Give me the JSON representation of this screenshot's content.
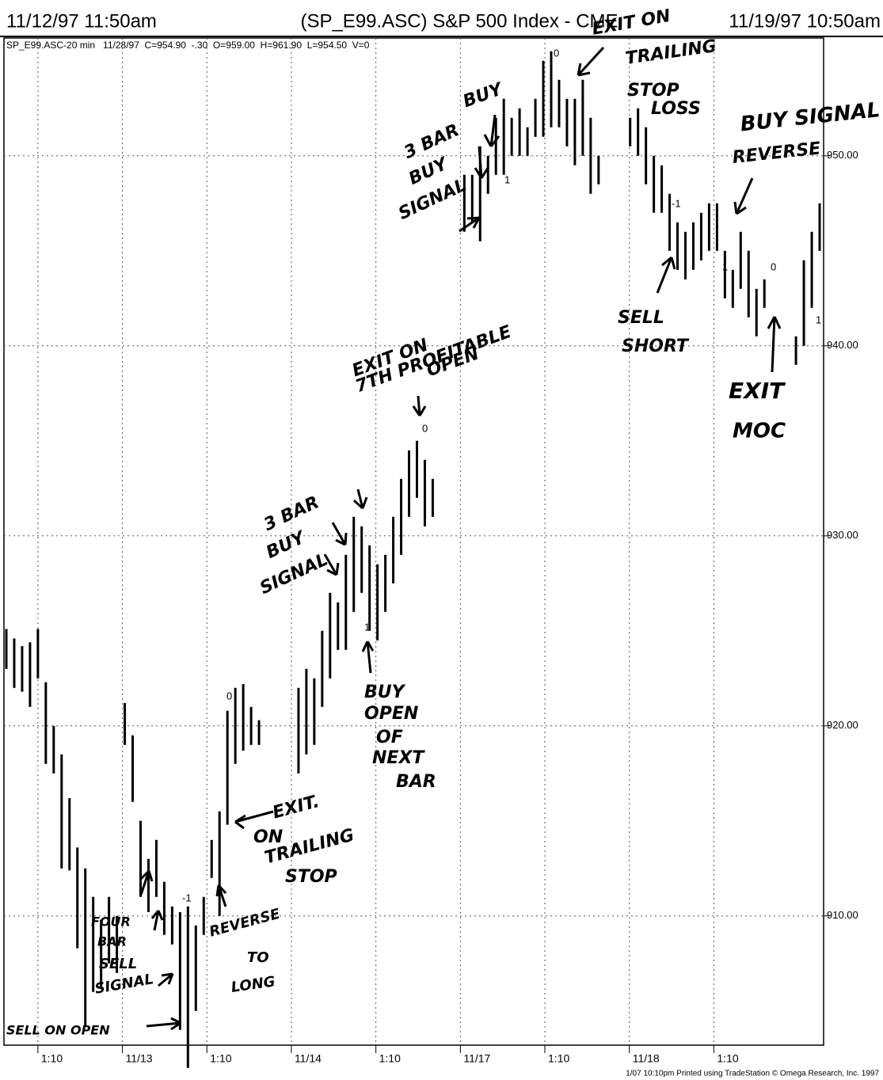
{
  "chart_data": {
    "type": "range-bar",
    "title_left": "11/12/97 11:50am",
    "title": "(SP_E99.ASC) S&P 500 Index - CME",
    "title_right": "11/19/97 10:50am",
    "subtitle": "SP_E99.ASC-20 min   11/28/97  C=954.90  -.30  O=959.00  H=961.90  L=954.50  V=0",
    "footer": "1/07 10:10pm Printed using TradeStation © Omega Research, Inc. 1997",
    "color": "#000000",
    "x": [
      0,
      1,
      2,
      3,
      4,
      5,
      6,
      7,
      8,
      9,
      10,
      11,
      12,
      13,
      14,
      15,
      16,
      17,
      18,
      19,
      20,
      21,
      22,
      23,
      24,
      25,
      26,
      27,
      28,
      29,
      30,
      31,
      32,
      37,
      38,
      39,
      40,
      41,
      42,
      43,
      44,
      45,
      46,
      47,
      48,
      49,
      50,
      51,
      52,
      53,
      54,
      58,
      59,
      60,
      61,
      62,
      63,
      64,
      65,
      66,
      67,
      68,
      69,
      70,
      71,
      72,
      73,
      74,
      75,
      79,
      80,
      81,
      82,
      83,
      84,
      85,
      86,
      87,
      88,
      89,
      90,
      91,
      92,
      93,
      94,
      95,
      96,
      100,
      101,
      102,
      103
    ],
    "high": [
      925.1,
      924.6,
      924.2,
      924.4,
      925.1,
      922.3,
      920.0,
      918.5,
      916.2,
      913.6,
      912.5,
      911.0,
      909.8,
      911.0,
      910.0,
      921.2,
      919.5,
      915.0,
      913.0,
      914.0,
      911.8,
      910.5,
      910.2,
      910.5,
      909.5,
      911.0,
      914.0,
      915.5,
      920.8,
      922.0,
      922.2,
      921.0,
      920.3,
      922.0,
      923.0,
      922.5,
      925.0,
      927.0,
      926.5,
      929.0,
      931.0,
      930.5,
      929.5,
      928.5,
      929.0,
      931.0,
      933.0,
      934.5,
      935.0,
      934.0,
      933.0,
      949.0,
      949.0,
      950.5,
      950.0,
      952.0,
      953.0,
      952.0,
      952.5,
      951.5,
      953.0,
      955.0,
      955.5,
      954.0,
      953.0,
      953.0,
      954.0,
      952.0,
      950.0,
      952.0,
      952.5,
      951.5,
      950.0,
      949.5,
      948.0,
      946.5,
      946.0,
      946.5,
      947.0,
      947.5,
      947.5,
      945.0,
      944.0,
      946.0,
      945.0,
      943.0,
      943.5,
      940.5,
      944.5,
      946.0,
      947.5
    ],
    "low": [
      923.0,
      922.0,
      921.8,
      921.0,
      922.5,
      918.0,
      917.5,
      912.5,
      912.4,
      908.3,
      904.2,
      906.0,
      906.3,
      907.5,
      907.0,
      919.0,
      916.0,
      911.0,
      910.2,
      911.0,
      909.0,
      908.5,
      904.0,
      902.0,
      905.0,
      909.0,
      912.0,
      910.0,
      914.8,
      918.0,
      918.7,
      919.0,
      919.0,
      917.5,
      918.5,
      919.0,
      921.0,
      922.5,
      924.0,
      924.0,
      926.0,
      927.0,
      925.0,
      924.5,
      926.0,
      927.5,
      929.0,
      931.0,
      932.0,
      930.5,
      931.0,
      946.0,
      946.5,
      945.5,
      948.0,
      949.0,
      949.0,
      950.0,
      950.0,
      950.0,
      951.0,
      951.0,
      951.5,
      951.5,
      950.5,
      949.5,
      950.0,
      948.0,
      948.5,
      950.5,
      950.0,
      948.5,
      947.0,
      947.0,
      945.0,
      944.0,
      943.5,
      944.0,
      944.5,
      945.0,
      945.0,
      942.5,
      942.0,
      943.0,
      941.5,
      940.5,
      942.0,
      939.0,
      940.0,
      942.0,
      945.0
    ],
    "xlim": [
      -0.3,
      103.5
    ],
    "xticks": [
      {
        "value": 4,
        "label": "1:10"
      },
      {
        "value": 14.7,
        "label": "11/13"
      },
      {
        "value": 25.4,
        "label": "1:10"
      },
      {
        "value": 36.1,
        "label": "11/14"
      },
      {
        "value": 46.8,
        "label": "1:10"
      },
      {
        "value": 57.5,
        "label": "11/17"
      },
      {
        "value": 68.2,
        "label": "1:10"
      },
      {
        "value": 78.9,
        "label": "11/18"
      },
      {
        "value": 89.6,
        "label": "1:10"
      }
    ],
    "ylim": [
      903.2,
      956.2
    ],
    "yticks": [
      {
        "value": 910,
        "label": "910.00"
      },
      {
        "value": 920,
        "label": "920.00"
      },
      {
        "value": 930,
        "label": "930.00"
      },
      {
        "value": 940,
        "label": "940.00"
      },
      {
        "value": 950,
        "label": "950.00"
      }
    ],
    "grid": true,
    "annotations": [
      "EXIT ON",
      "TRAILING",
      "STOP",
      "LOSS",
      "BUY",
      "3 BAR",
      "BUY",
      "SIGNAL",
      "BUY SIGNAL",
      "REVERSE",
      "SELL",
      "SHORT",
      "EXIT ON",
      "7TH PROFITABLE",
      "OPEN",
      "EXIT",
      "MOC",
      "3 BAR",
      "BUY",
      "SIGNAL",
      "BUY",
      "OPEN",
      "OF",
      "NEXT",
      "BAR",
      "EXIT.",
      "ON",
      "TRAILING",
      "STOP",
      "FOUR",
      "BAR",
      "SELL",
      "SIGNAL",
      "REVERSE",
      "TO",
      "LONG",
      "SELL ON OPEN"
    ],
    "signal_labels": [
      "0",
      "1",
      "-1",
      "1",
      "0",
      "1",
      "0",
      "1",
      "0",
      "-1"
    ]
  }
}
